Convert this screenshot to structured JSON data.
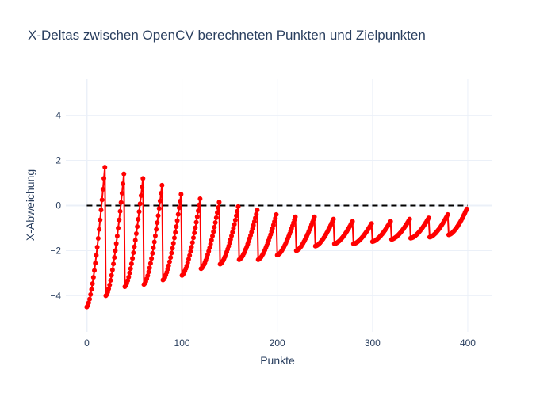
{
  "chart_data": {
    "type": "line",
    "title": "X-Deltas zwischen OpenCV berechneten Punkten und Zielpunkten",
    "xlabel": "Punkte",
    "ylabel": "X-Abweichung",
    "xlim": [
      -22,
      425
    ],
    "ylim": [
      -5.6,
      5.6
    ],
    "x_ticks": [
      0,
      100,
      200,
      300,
      400
    ],
    "y_ticks": [
      -4,
      -2,
      0,
      2,
      4
    ],
    "grid": true,
    "reference_line": {
      "y": 0,
      "x_range": [
        0,
        400
      ],
      "style": "dashed",
      "color": "#000000"
    },
    "series": [
      {
        "color": "#ff0000",
        "mode": "lines+markers",
        "segments": [
          {
            "x_start": 0,
            "x_end": 19,
            "y_start": -4.5,
            "y_end": 1.7
          },
          {
            "x_start": 20,
            "x_end": 39,
            "y_start": -4.0,
            "y_end": 1.4
          },
          {
            "x_start": 40,
            "x_end": 59,
            "y_start": -3.6,
            "y_end": 1.2
          },
          {
            "x_start": 60,
            "x_end": 79,
            "y_start": -3.5,
            "y_end": 0.9
          },
          {
            "x_start": 80,
            "x_end": 99,
            "y_start": -3.3,
            "y_end": 0.5
          },
          {
            "x_start": 100,
            "x_end": 119,
            "y_start": -3.1,
            "y_end": 0.3
          },
          {
            "x_start": 120,
            "x_end": 139,
            "y_start": -2.8,
            "y_end": 0.15
          },
          {
            "x_start": 140,
            "x_end": 159,
            "y_start": -2.6,
            "y_end": -0.05
          },
          {
            "x_start": 160,
            "x_end": 179,
            "y_start": -2.4,
            "y_end": -0.2
          },
          {
            "x_start": 180,
            "x_end": 199,
            "y_start": -2.4,
            "y_end": -0.4
          },
          {
            "x_start": 200,
            "x_end": 219,
            "y_start": -2.2,
            "y_end": -0.5
          },
          {
            "x_start": 220,
            "x_end": 239,
            "y_start": -2.0,
            "y_end": -0.5
          },
          {
            "x_start": 240,
            "x_end": 259,
            "y_start": -1.8,
            "y_end": -0.6
          },
          {
            "x_start": 260,
            "x_end": 279,
            "y_start": -1.7,
            "y_end": -0.7
          },
          {
            "x_start": 280,
            "x_end": 299,
            "y_start": -1.7,
            "y_end": -0.8
          },
          {
            "x_start": 300,
            "x_end": 319,
            "y_start": -1.6,
            "y_end": -0.7
          },
          {
            "x_start": 320,
            "x_end": 339,
            "y_start": -1.5,
            "y_end": -0.6
          },
          {
            "x_start": 340,
            "x_end": 359,
            "y_start": -1.45,
            "y_end": -0.55
          },
          {
            "x_start": 360,
            "x_end": 379,
            "y_start": -1.4,
            "y_end": -0.4
          },
          {
            "x_start": 380,
            "x_end": 399,
            "y_start": -1.3,
            "y_end": -0.15
          }
        ]
      }
    ]
  }
}
